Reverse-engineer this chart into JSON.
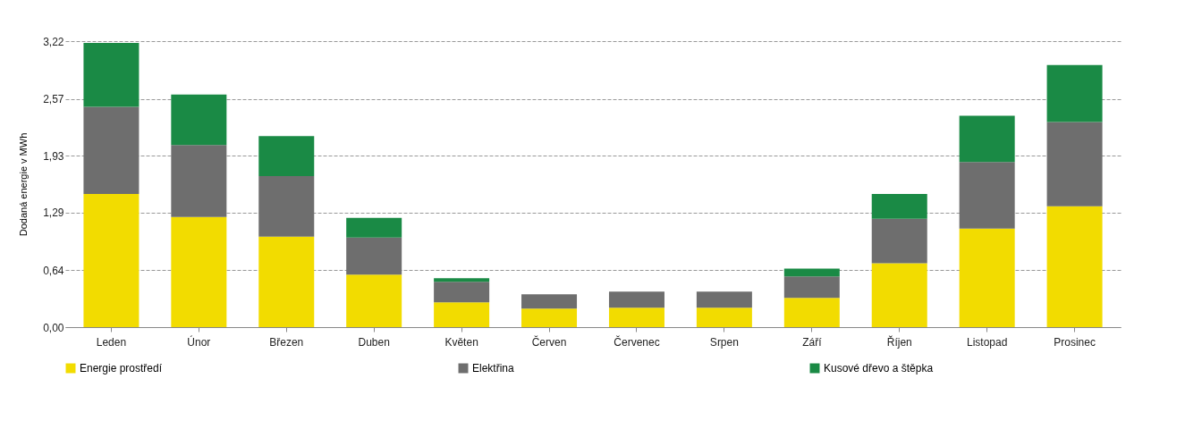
{
  "chart_data": {
    "type": "bar",
    "stacked": true,
    "ylabel": "Dodaná energie v MWh",
    "categories": [
      "Leden",
      "Únor",
      "Březen",
      "Duben",
      "Květen",
      "Červen",
      "Červenec",
      "Srpen",
      "Září",
      "Říjen",
      "Listopad",
      "Prosinec"
    ],
    "series": [
      {
        "name": "Energie prostředí",
        "color": "#f2dc00",
        "values": [
          1.5,
          1.24,
          1.02,
          0.59,
          0.28,
          0.21,
          0.22,
          0.22,
          0.33,
          0.72,
          1.11,
          1.36
        ]
      },
      {
        "name": "Elektřina",
        "color": "#6e6e6e",
        "values": [
          0.98,
          0.81,
          0.68,
          0.42,
          0.23,
          0.16,
          0.18,
          0.18,
          0.24,
          0.5,
          0.75,
          0.95
        ]
      },
      {
        "name": "Kusové dřevo a štěpka",
        "color": "#1a8a45",
        "values": [
          0.72,
          0.57,
          0.45,
          0.22,
          0.04,
          0,
          0,
          0,
          0.09,
          0.28,
          0.52,
          0.64
        ]
      }
    ],
    "ylim": [
      0,
      3.22
    ],
    "yticks": [
      {
        "value": 0,
        "label": "0,00"
      },
      {
        "value": 0.64,
        "label": "0,64"
      },
      {
        "value": 1.29,
        "label": "1,29"
      },
      {
        "value": 1.93,
        "label": "1,93"
      },
      {
        "value": 2.57,
        "label": "2,57"
      },
      {
        "value": 3.22,
        "label": "3,22"
      }
    ],
    "grid": "y",
    "legend": "bottom"
  }
}
